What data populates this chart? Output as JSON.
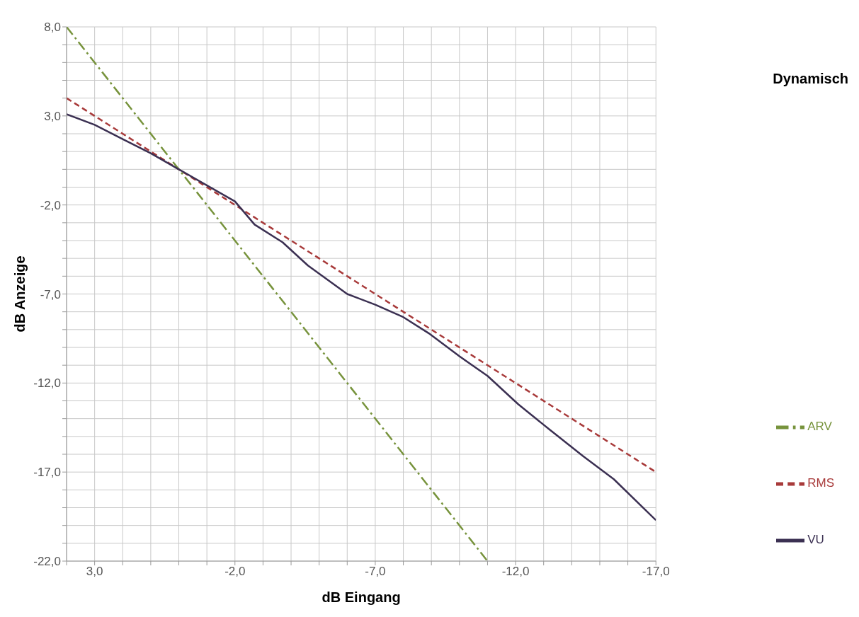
{
  "chart_data": {
    "type": "line",
    "title": "Dynamisch",
    "xlabel": "dB Eingang",
    "ylabel": "dB Anzeige",
    "xlim": [
      4,
      -17
    ],
    "ylim": [
      -22,
      8
    ],
    "xticks": [
      {
        "value": 4,
        "label": null
      },
      {
        "value": 3,
        "label": "3,0"
      },
      {
        "value": 2,
        "label": null
      },
      {
        "value": 1,
        "label": null
      },
      {
        "value": 0,
        "label": null
      },
      {
        "value": -1,
        "label": null
      },
      {
        "value": -2,
        "label": "-2,0"
      },
      {
        "value": -3,
        "label": null
      },
      {
        "value": -4,
        "label": null
      },
      {
        "value": -5,
        "label": null
      },
      {
        "value": -6,
        "label": null
      },
      {
        "value": -7,
        "label": "-7,0"
      },
      {
        "value": -8,
        "label": null
      },
      {
        "value": -9,
        "label": null
      },
      {
        "value": -10,
        "label": null
      },
      {
        "value": -11,
        "label": null
      },
      {
        "value": -12,
        "label": "-12,0"
      },
      {
        "value": -13,
        "label": null
      },
      {
        "value": -14,
        "label": null
      },
      {
        "value": -15,
        "label": null
      },
      {
        "value": -16,
        "label": null
      },
      {
        "value": -17,
        "label": "-17,0"
      }
    ],
    "yticks": [
      {
        "value": 8,
        "label": "8,0"
      },
      {
        "value": 7,
        "label": null
      },
      {
        "value": 6,
        "label": null
      },
      {
        "value": 5,
        "label": null
      },
      {
        "value": 4,
        "label": null
      },
      {
        "value": 3,
        "label": "3,0"
      },
      {
        "value": 2,
        "label": null
      },
      {
        "value": 1,
        "label": null
      },
      {
        "value": 0,
        "label": null
      },
      {
        "value": -1,
        "label": null
      },
      {
        "value": -2,
        "label": "-2,0"
      },
      {
        "value": -3,
        "label": null
      },
      {
        "value": -4,
        "label": null
      },
      {
        "value": -5,
        "label": null
      },
      {
        "value": -6,
        "label": null
      },
      {
        "value": -7,
        "label": "-7,0"
      },
      {
        "value": -8,
        "label": null
      },
      {
        "value": -9,
        "label": null
      },
      {
        "value": -10,
        "label": null
      },
      {
        "value": -11,
        "label": null
      },
      {
        "value": -12,
        "label": "-12,0"
      },
      {
        "value": -13,
        "label": null
      },
      {
        "value": -14,
        "label": null
      },
      {
        "value": -15,
        "label": null
      },
      {
        "value": -16,
        "label": null
      },
      {
        "value": -17,
        "label": "-17,0"
      },
      {
        "value": -18,
        "label": null
      },
      {
        "value": -19,
        "label": null
      },
      {
        "value": -20,
        "label": null
      },
      {
        "value": -21,
        "label": null
      },
      {
        "value": -22,
        "label": "-22,0"
      }
    ],
    "grid": true,
    "legend": "right",
    "marker": "none",
    "series": [
      {
        "name": "RMS",
        "color": "#a83a3a",
        "line_style": "dashed",
        "x": [
          4,
          0,
          -5,
          -10,
          -17
        ],
        "values": [
          4,
          0,
          -5,
          -10,
          -17
        ]
      },
      {
        "name": "ARV",
        "color": "#77933c",
        "line_style": "dashdot",
        "x": [
          4,
          0,
          -11
        ],
        "values": [
          8,
          0,
          -22
        ]
      },
      {
        "name": "VU",
        "color": "#3b3052",
        "line_style": "solid",
        "x": [
          4,
          3,
          2,
          1,
          0,
          -2,
          -2.7,
          -3.7,
          -4.6,
          -6,
          -7,
          -8,
          -8.9,
          -10,
          -11,
          -12.1,
          -13.2,
          -14.4,
          -15.5,
          -17
        ],
        "values": [
          3.1,
          2.5,
          1.7,
          0.9,
          0,
          -1.8,
          -3.1,
          -4.1,
          -5.4,
          -7,
          -7.6,
          -8.3,
          -9.2,
          -10.5,
          -11.6,
          -13.2,
          -14.6,
          -16.1,
          -17.4,
          -19.7
        ]
      }
    ]
  }
}
